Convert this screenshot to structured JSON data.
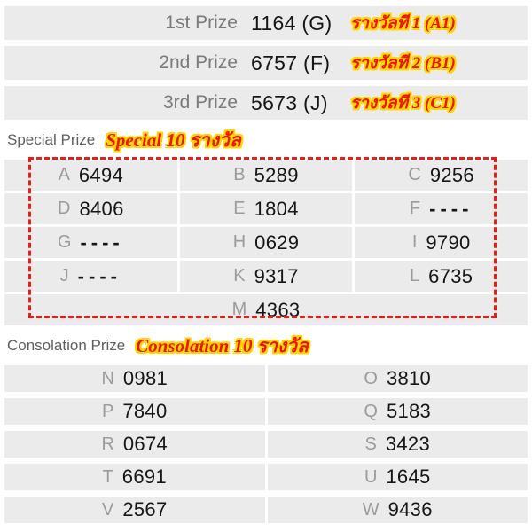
{
  "colors": {
    "row_bg": "#ebebeb",
    "accent_red": "#ee1500",
    "glow_yellow": "#ffd600",
    "dashed_border_red": "#e42019",
    "label_gray": "#7a7a7a",
    "number_black": "#161616",
    "letter_gray": "#9b9b9b",
    "section_gray": "#5f5f5f"
  },
  "top_prizes": [
    {
      "label": "1st Prize",
      "number": "1164 (G)",
      "thai": "รางวัลที 1 (A1)"
    },
    {
      "label": "2nd Prize",
      "number": "6757 (F)",
      "thai": "รางวัลที 2 (B1)"
    },
    {
      "label": "3rd Prize",
      "number": "5673 (J)",
      "thai": "รางวัลที 3 (C1)"
    }
  ],
  "special": {
    "label": "Special Prize",
    "highlight": "Special 10 รางวัล",
    "rows": [
      [
        {
          "letter": "A",
          "number": "6494"
        },
        {
          "letter": "B",
          "number": "5289"
        },
        {
          "letter": "C",
          "number": "9256"
        }
      ],
      [
        {
          "letter": "D",
          "number": "8406"
        },
        {
          "letter": "E",
          "number": "1804"
        },
        {
          "letter": "F",
          "number": "----"
        }
      ],
      [
        {
          "letter": "G",
          "number": "----"
        },
        {
          "letter": "H",
          "number": "0629"
        },
        {
          "letter": "I",
          "number": "9790"
        }
      ],
      [
        {
          "letter": "J",
          "number": "----"
        },
        {
          "letter": "K",
          "number": "9317"
        },
        {
          "letter": "L",
          "number": "6735"
        }
      ],
      [
        {
          "letter": "M",
          "number": "4363"
        }
      ]
    ]
  },
  "consolation": {
    "label": "Consolation Prize",
    "highlight": "Consolation 10 รางวัล",
    "rows": [
      [
        {
          "letter": "N",
          "number": "0981"
        },
        {
          "letter": "O",
          "number": "3810"
        }
      ],
      [
        {
          "letter": "P",
          "number": "7840"
        },
        {
          "letter": "Q",
          "number": "5183"
        }
      ],
      [
        {
          "letter": "R",
          "number": "0674"
        },
        {
          "letter": "S",
          "number": "3423"
        }
      ],
      [
        {
          "letter": "T",
          "number": "6691"
        },
        {
          "letter": "U",
          "number": "1645"
        }
      ],
      [
        {
          "letter": "V",
          "number": "2567"
        },
        {
          "letter": "W",
          "number": "9436"
        }
      ]
    ]
  }
}
